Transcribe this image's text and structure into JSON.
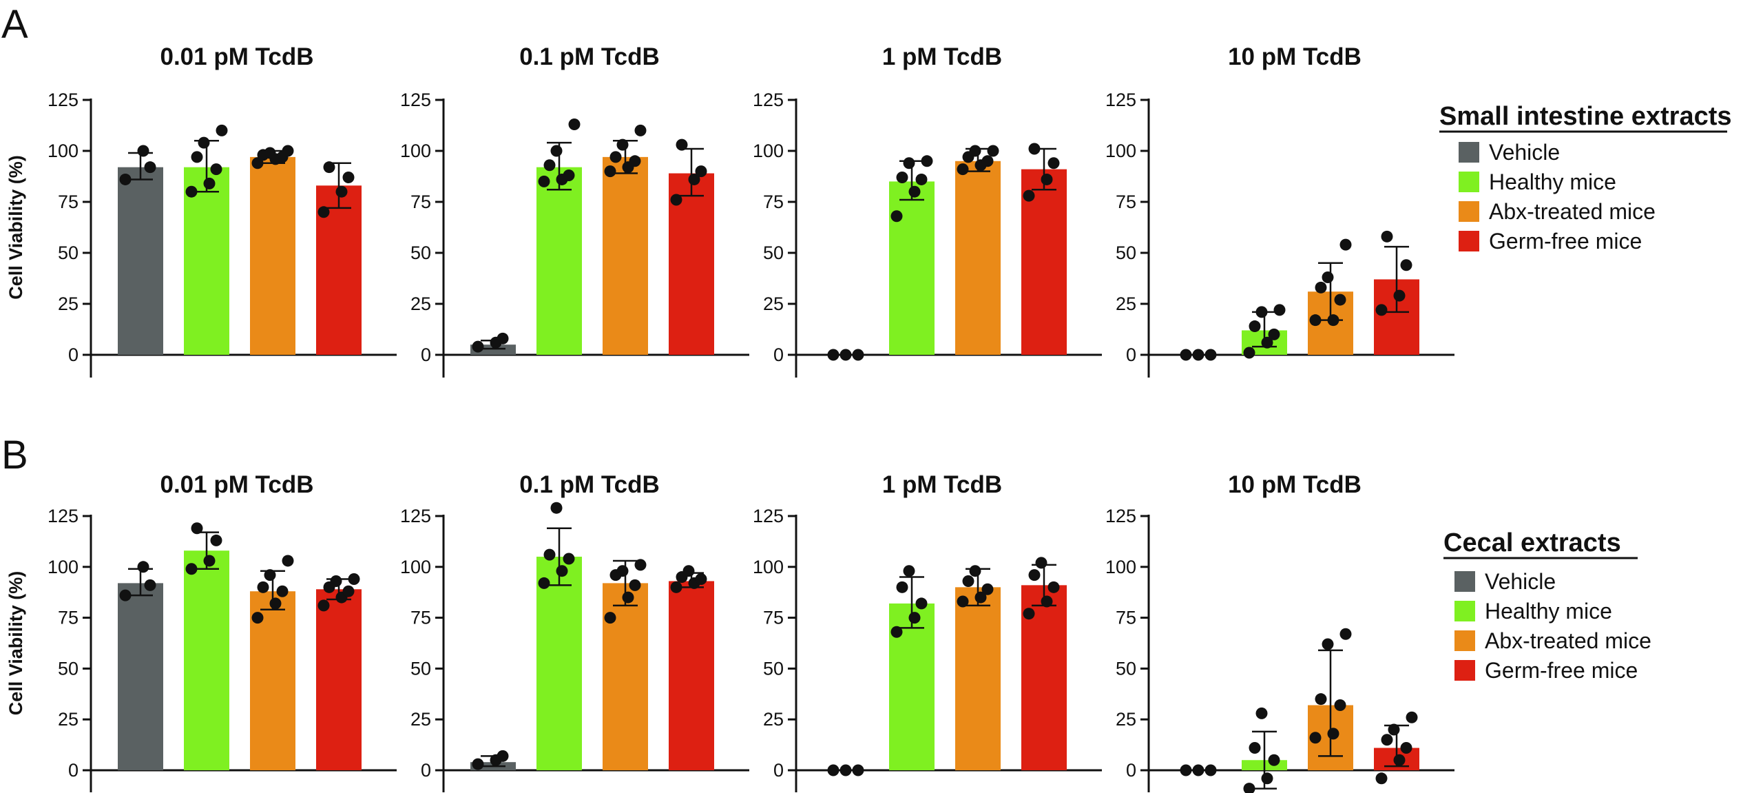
{
  "panels": [
    {
      "letter": "A",
      "legend": {
        "title": "Small intestine extracts",
        "items": [
          {
            "label": "Vehicle",
            "color": "#5a6162"
          },
          {
            "label": "Healthy mice",
            "color": "#7ff021"
          },
          {
            "label": "Abx-treated mice",
            "color": "#ea8a18"
          },
          {
            "label": "Germ-free mice",
            "color": "#dd2012"
          }
        ]
      }
    },
    {
      "letter": "B",
      "legend": {
        "title": "Cecal extracts",
        "items": [
          {
            "label": "Vehicle",
            "color": "#5a6162"
          },
          {
            "label": "Healthy mice",
            "color": "#7ff021"
          },
          {
            "label": "Abx-treated mice",
            "color": "#ea8a18"
          },
          {
            "label": "Germ-free mice",
            "color": "#dd2012"
          }
        ]
      }
    }
  ],
  "chart_data": [
    {
      "type": "bar",
      "panel": "A",
      "title": "0.01 pM TcdB",
      "ylabel": "Cell Viability (%)",
      "ylim": [
        0,
        125
      ],
      "yticks": [
        0,
        25,
        50,
        75,
        100,
        125
      ],
      "categories": [
        "Vehicle",
        "Healthy mice",
        "Abx-treated mice",
        "Germ-free mice"
      ],
      "values": [
        92,
        92,
        97,
        83
      ],
      "error": [
        [
          86,
          99
        ],
        [
          80,
          105
        ],
        [
          94,
          100
        ],
        [
          72,
          94
        ]
      ],
      "points": [
        [
          86,
          100,
          92
        ],
        [
          80,
          84,
          91,
          97,
          104,
          110
        ],
        [
          94,
          96,
          97,
          98,
          99,
          100
        ],
        [
          70,
          80,
          87,
          92
        ]
      ]
    },
    {
      "type": "bar",
      "panel": "A",
      "title": "0.1 pM TcdB",
      "ylabel": "",
      "ylim": [
        0,
        125
      ],
      "yticks": [
        0,
        25,
        50,
        75,
        100,
        125
      ],
      "categories": [
        "Vehicle",
        "Healthy mice",
        "Abx-treated mice",
        "Germ-free mice"
      ],
      "values": [
        5,
        92,
        97,
        89
      ],
      "error": [
        [
          3,
          7
        ],
        [
          81,
          104
        ],
        [
          89,
          105
        ],
        [
          78,
          101
        ]
      ],
      "points": [
        [
          4,
          6,
          8
        ],
        [
          85,
          86,
          88,
          93,
          100,
          113
        ],
        [
          90,
          92,
          95,
          97,
          103,
          110
        ],
        [
          76,
          86,
          90,
          103
        ]
      ]
    },
    {
      "type": "bar",
      "panel": "A",
      "title": "1 pM TcdB",
      "ylabel": "",
      "ylim": [
        0,
        125
      ],
      "yticks": [
        0,
        25,
        50,
        75,
        100,
        125
      ],
      "categories": [
        "Vehicle",
        "Healthy mice",
        "Abx-treated mice",
        "Germ-free mice"
      ],
      "values": [
        0,
        85,
        95,
        91
      ],
      "error": [
        null,
        [
          76,
          95
        ],
        [
          90,
          101
        ],
        [
          81,
          101
        ]
      ],
      "points": [
        [
          0,
          0,
          0
        ],
        [
          68,
          80,
          86,
          87,
          94,
          95
        ],
        [
          91,
          93,
          95,
          97,
          100,
          100
        ],
        [
          78,
          86,
          94,
          101
        ]
      ]
    },
    {
      "type": "bar",
      "panel": "A",
      "title": "10 pM TcdB",
      "ylabel": "",
      "ylim": [
        0,
        125
      ],
      "yticks": [
        0,
        25,
        50,
        75,
        100,
        125
      ],
      "categories": [
        "Vehicle",
        "Healthy mice",
        "Abx-treated mice",
        "Germ-free mice"
      ],
      "values": [
        0,
        12,
        31,
        37
      ],
      "error": [
        null,
        [
          4,
          21
        ],
        [
          17,
          45
        ],
        [
          21,
          53
        ]
      ],
      "points": [
        [
          0,
          0,
          0
        ],
        [
          1,
          6,
          10,
          14,
          21,
          22
        ],
        [
          17,
          17,
          27,
          33,
          38,
          54
        ],
        [
          22,
          29,
          44,
          58
        ]
      ]
    },
    {
      "type": "bar",
      "panel": "B",
      "title": "0.01 pM TcdB",
      "ylabel": "Cell Viability (%)",
      "ylim": [
        0,
        125
      ],
      "yticks": [
        0,
        25,
        50,
        75,
        100,
        125
      ],
      "categories": [
        "Vehicle",
        "Healthy mice",
        "Abx-treated mice",
        "Germ-free mice"
      ],
      "values": [
        92,
        108,
        88,
        89
      ],
      "error": [
        [
          86,
          99
        ],
        [
          99,
          117
        ],
        [
          79,
          98
        ],
        [
          84,
          94
        ]
      ],
      "points": [
        [
          86,
          100,
          91
        ],
        [
          99,
          103,
          113,
          119
        ],
        [
          75,
          82,
          88,
          90,
          96,
          103
        ],
        [
          81,
          85,
          88,
          90,
          93,
          94
        ]
      ]
    },
    {
      "type": "bar",
      "panel": "B",
      "title": "0.1 pM TcdB",
      "ylabel": "",
      "ylim": [
        0,
        125
      ],
      "yticks": [
        0,
        25,
        50,
        75,
        100,
        125
      ],
      "categories": [
        "Vehicle",
        "Healthy mice",
        "Abx-treated mice",
        "Germ-free mice"
      ],
      "values": [
        4,
        105,
        92,
        93
      ],
      "error": [
        [
          2,
          7
        ],
        [
          91,
          119
        ],
        [
          81,
          103
        ],
        [
          90,
          97
        ]
      ],
      "points": [
        [
          3,
          5,
          7
        ],
        [
          92,
          98,
          104,
          106,
          129
        ],
        [
          75,
          85,
          91,
          96,
          98,
          101
        ],
        [
          90,
          92,
          94,
          95,
          98
        ]
      ]
    },
    {
      "type": "bar",
      "panel": "B",
      "title": "1 pM TcdB",
      "ylabel": "",
      "ylim": [
        0,
        125
      ],
      "yticks": [
        0,
        25,
        50,
        75,
        100,
        125
      ],
      "categories": [
        "Vehicle",
        "Healthy mice",
        "Abx-treated mice",
        "Germ-free mice"
      ],
      "values": [
        0,
        82,
        90,
        91
      ],
      "error": [
        null,
        [
          70,
          95
        ],
        [
          81,
          99
        ],
        [
          81,
          101
        ]
      ],
      "points": [
        [
          0,
          0,
          0
        ],
        [
          68,
          75,
          82,
          90,
          98
        ],
        [
          83,
          85,
          89,
          93,
          98
        ],
        [
          77,
          83,
          90,
          96,
          102
        ]
      ]
    },
    {
      "type": "bar",
      "panel": "B",
      "title": "10 pM TcdB",
      "ylabel": "",
      "ylim": [
        0,
        125
      ],
      "yticks": [
        0,
        25,
        50,
        75,
        100,
        125
      ],
      "categories": [
        "Vehicle",
        "Healthy mice",
        "Abx-treated mice",
        "Germ-free mice"
      ],
      "values": [
        0,
        5,
        32,
        11
      ],
      "error": [
        null,
        [
          -9,
          19
        ],
        [
          7,
          59
        ],
        [
          2,
          22
        ]
      ],
      "points": [
        [
          0,
          0,
          0
        ],
        [
          -9,
          -4,
          5,
          11,
          28
        ],
        [
          16,
          18,
          32,
          35,
          62,
          67
        ],
        [
          -4,
          5,
          11,
          15,
          20,
          26
        ]
      ]
    }
  ]
}
